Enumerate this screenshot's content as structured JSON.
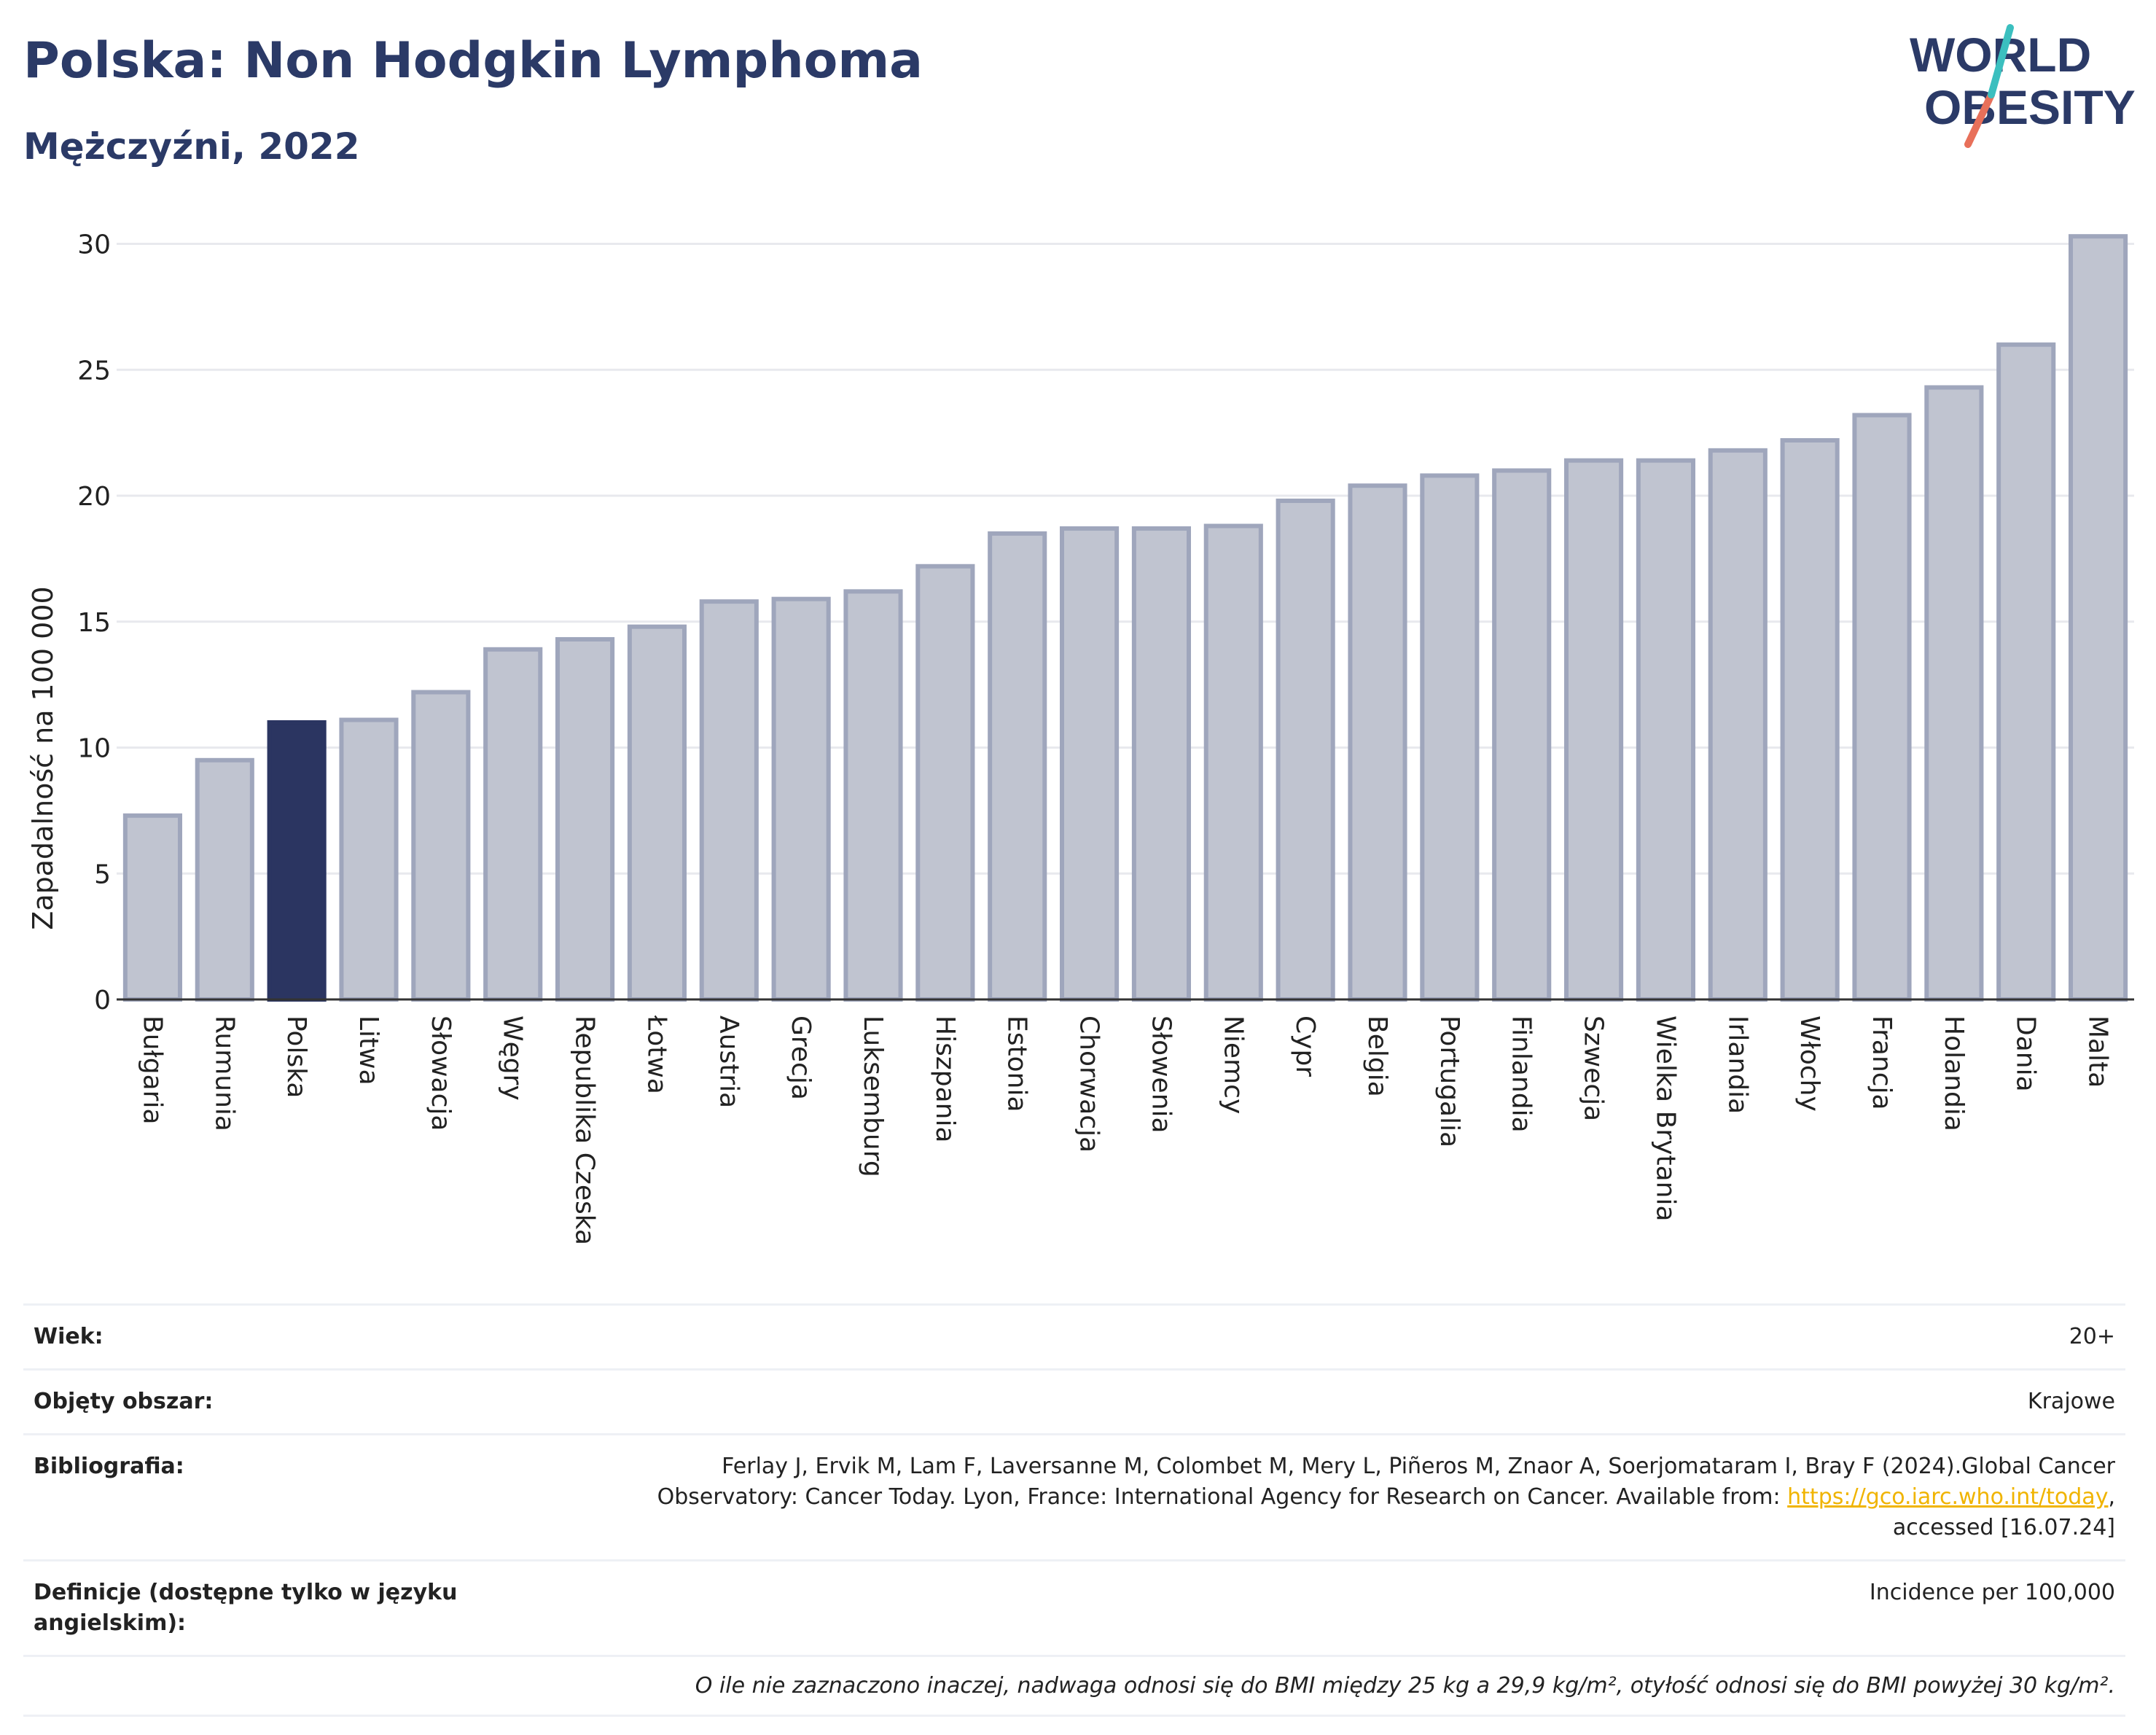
{
  "header": {
    "title": "Polska: Non Hodgkin Lymphoma",
    "subtitle": "Mężczyźni, 2022"
  },
  "logo": {
    "line1": "WORLD",
    "line2": "OBESITY"
  },
  "colors": {
    "highlight": "#2b3561",
    "bar": "#c0c4d0",
    "bar_border": "#9fa6bc",
    "title": "#2b3a67",
    "grid": "#e8e9ee"
  },
  "chart_data": {
    "type": "bar",
    "ylabel": "Zapadalność na 100 000",
    "ylim": [
      0,
      31
    ],
    "yticks": [
      0,
      5,
      10,
      15,
      20,
      25,
      30
    ],
    "highlight": "Polska",
    "categories": [
      "Bułgaria",
      "Rumunia",
      "Polska",
      "Litwa",
      "Słowacja",
      "Węgry",
      "Republika Czeska",
      "Łotwa",
      "Austria",
      "Grecja",
      "Luksemburg",
      "Hiszpania",
      "Estonia",
      "Chorwacja",
      "Słowenia",
      "Niemcy",
      "Cypr",
      "Belgia",
      "Portugalia",
      "Finlandia",
      "Szwecja",
      "Wielka Brytania",
      "Irlandia",
      "Włochy",
      "Francja",
      "Holandia",
      "Dania",
      "Malta"
    ],
    "values": [
      7.3,
      9.5,
      11.0,
      11.1,
      12.2,
      13.9,
      14.3,
      14.8,
      15.8,
      15.9,
      16.2,
      17.2,
      18.5,
      18.7,
      18.7,
      18.8,
      19.8,
      20.4,
      20.8,
      21.0,
      21.4,
      21.4,
      21.8,
      22.2,
      23.2,
      24.3,
      26.0,
      30.3
    ]
  },
  "info": {
    "age_label": "Wiek:",
    "age_value": "20+",
    "coverage_label": "Objęty obszar:",
    "coverage_value": "Krajowe",
    "bib_label": "Bibliografia:",
    "bib_line1": "Ferlay J, Ervik M, Lam F, Laversanne M, Colombet M, Mery L, Piñeros M, Znaor A, Soerjomataram I, Bray F (2024).Global Cancer",
    "bib_line2_pre": "Observatory: Cancer Today. Lyon, France: International Agency for Research on Cancer. Available from: ",
    "bib_link": "https://gco.iarc.who.int/today",
    "bib_line2_post": ",",
    "bib_line3": "accessed [16.07.24]",
    "def_label": "Definicje (dostępne tylko w języku angielskim):",
    "def_value": "Incidence per 100,000",
    "note": "O ile nie zaznaczono inaczej, nadwaga odnosi się do BMI między 25 kg a 29,9 kg/m², otyłość odnosi się do BMI powyżej 30 kg/m²."
  }
}
